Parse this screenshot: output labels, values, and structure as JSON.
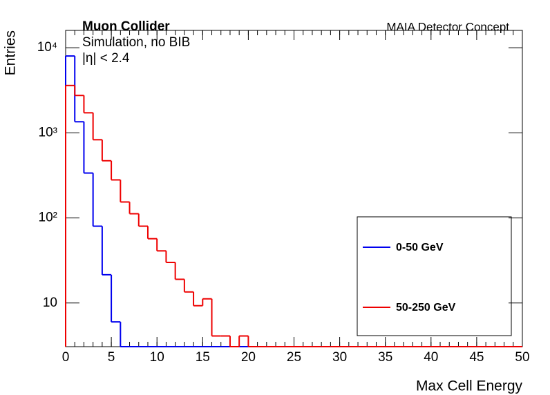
{
  "chart_data": {
    "type": "histogram",
    "title": "Muon Collider",
    "subtitle": "Simulation, no BIB",
    "annotation": "|η| < 2.4",
    "corner_label": "MAIA Detector Concept",
    "x_label": "Max Cell Energy",
    "y_label": "Entries",
    "log_y": true,
    "legend_position": "lower right",
    "bins": [
      0,
      1,
      2,
      3,
      4,
      5,
      6,
      7,
      8,
      9,
      10,
      11,
      12,
      13,
      14,
      15,
      16,
      17,
      18,
      19,
      20,
      21,
      22,
      23,
      24,
      25,
      26,
      27,
      28,
      29,
      30,
      31,
      32,
      33,
      34,
      35,
      36,
      37,
      38,
      39,
      40,
      41,
      42,
      43,
      44,
      45,
      46,
      47,
      48,
      49,
      50
    ],
    "series": [
      {
        "name": "0-50 GeV",
        "color": "#0000ee",
        "values": [
          8000,
          1350,
          337,
          80,
          21.5,
          6,
          0,
          0,
          0,
          0,
          0,
          0,
          0,
          0,
          0,
          0,
          0,
          0,
          0,
          0,
          0,
          0,
          0,
          0,
          0,
          0,
          0,
          0,
          0,
          0,
          0,
          0,
          0,
          0,
          0,
          0,
          0,
          0,
          0,
          0,
          0,
          0,
          0,
          0,
          0,
          0,
          0,
          0,
          0,
          0
        ]
      },
      {
        "name": "50-250 GeV",
        "color": "#ee0000",
        "values": [
          3600,
          2750,
          1720,
          830,
          470,
          280,
          154,
          112,
          80,
          57,
          41,
          30,
          19,
          13.5,
          9.3,
          11.2,
          4.1,
          4.1,
          0,
          4.1,
          0,
          0,
          0,
          0,
          0,
          0,
          0,
          0,
          0,
          0,
          0,
          0,
          0,
          0,
          0,
          0,
          0,
          0,
          0,
          0,
          0,
          0,
          0,
          0,
          0,
          0,
          0,
          0,
          0,
          0
        ]
      }
    ],
    "xlim": [
      0,
      50
    ],
    "xticks": [
      0,
      5,
      10,
      15,
      20,
      25,
      30,
      35,
      40,
      45,
      50
    ],
    "ylim": [
      3.07,
      16000
    ],
    "yticks": [
      10,
      {
        "value": 100,
        "label": "10²"
      },
      {
        "value": 1000,
        "label": "10³"
      },
      {
        "value": 10000,
        "label": "10⁴"
      }
    ]
  }
}
